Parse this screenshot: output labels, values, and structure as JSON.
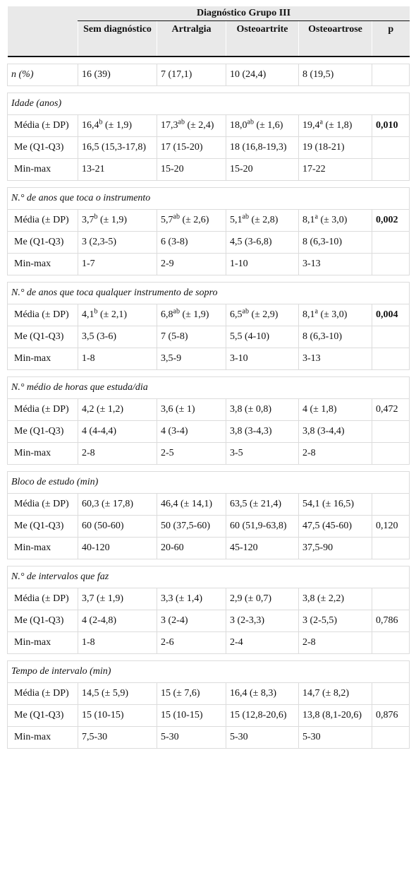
{
  "header": {
    "group_title": "Diagnóstico Grupo III",
    "columns": [
      "Sem diagnóstico",
      "Artralgia",
      "Osteoartrite",
      "Osteoartrose",
      "p"
    ]
  },
  "n_row": {
    "label": "n (%)",
    "values": [
      "16 (39)",
      "7 (17,1)",
      "10 (24,4)",
      "8 (19,5)",
      ""
    ]
  },
  "sections": [
    {
      "title": "Idade (anos)",
      "rows": [
        {
          "label": "Média (± DP)",
          "cells": [
            {
              "main": "16,4",
              "sup": "b",
              "rest": " (± 1,9)"
            },
            {
              "main": "17,3",
              "sup": "ab",
              "rest": " (± 2,4)"
            },
            {
              "main": "18,0",
              "sup": "ab",
              "rest": " (± 1,6)"
            },
            {
              "main": "19,4",
              "sup": "a",
              "rest": " (± 1,8)"
            }
          ],
          "p": "0,010",
          "p_bold": true
        },
        {
          "label": "Me (Q1-Q3)",
          "cells": [
            {
              "main": "16,5 (15,3-17,8)"
            },
            {
              "main": "17 (15-20)"
            },
            {
              "main": "18 (16,8-19,3)"
            },
            {
              "main": "19 (18-21)"
            }
          ],
          "p": ""
        },
        {
          "label": "Min-max",
          "cells": [
            {
              "main": "13-21"
            },
            {
              "main": "15-20"
            },
            {
              "main": "15-20"
            },
            {
              "main": "17-22"
            }
          ],
          "p": ""
        }
      ]
    },
    {
      "title": "N.° de anos que toca o instrumento",
      "rows": [
        {
          "label": "Média (± DP)",
          "cells": [
            {
              "main": "3,7",
              "sup": "b",
              "rest": " (± 1,9)"
            },
            {
              "main": "5,7",
              "sup": "ab",
              "rest": " (± 2,6)"
            },
            {
              "main": "5,1",
              "sup": "ab",
              "rest": " (± 2,8)"
            },
            {
              "main": "8,1",
              "sup": "a",
              "rest": " (± 3,0)"
            }
          ],
          "p": "0,002",
          "p_bold": true
        },
        {
          "label": "Me (Q1-Q3)",
          "cells": [
            {
              "main": "3 (2,3-5)"
            },
            {
              "main": "6 (3-8)"
            },
            {
              "main": "4,5 (3-6,8)"
            },
            {
              "main": "8 (6,3-10)"
            }
          ],
          "p": ""
        },
        {
          "label": "Min-max",
          "cells": [
            {
              "main": "1-7"
            },
            {
              "main": "2-9"
            },
            {
              "main": "1-10"
            },
            {
              "main": "3-13"
            }
          ],
          "p": ""
        }
      ]
    },
    {
      "title": "N.° de anos que toca qualquer instrumento de sopro",
      "rows": [
        {
          "label": "Média (± DP)",
          "cells": [
            {
              "main": "4,1",
              "sup": "b",
              "rest": " (± 2,1)"
            },
            {
              "main": "6,8",
              "sup": "ab",
              "rest": " (± 1,9)"
            },
            {
              "main": "6,5",
              "sup": "ab",
              "rest": " (± 2,9)"
            },
            {
              "main": "8,1",
              "sup": "a",
              "rest": " (± 3,0)"
            }
          ],
          "p": "0,004",
          "p_bold": true
        },
        {
          "label": "Me (Q1-Q3)",
          "cells": [
            {
              "main": "3,5 (3-6)"
            },
            {
              "main": "7 (5-8)"
            },
            {
              "main": "5,5 (4-10)"
            },
            {
              "main": "8 (6,3-10)"
            }
          ],
          "p": ""
        },
        {
          "label": "Min-max",
          "cells": [
            {
              "main": "1-8"
            },
            {
              "main": "3,5-9"
            },
            {
              "main": "3-10"
            },
            {
              "main": "3-13"
            }
          ],
          "p": ""
        }
      ]
    },
    {
      "title": "N.° médio de horas que estuda/dia",
      "rows": [
        {
          "label": "Média (± DP)",
          "cells": [
            {
              "main": "4,2 (± 1,2)"
            },
            {
              "main": "3,6 (± 1)"
            },
            {
              "main": "3,8 (± 0,8)"
            },
            {
              "main": "4 (± 1,8)"
            }
          ],
          "p": "0,472"
        },
        {
          "label": "Me (Q1-Q3)",
          "cells": [
            {
              "main": "4 (4-4,4)"
            },
            {
              "main": "4 (3-4)"
            },
            {
              "main": "3,8 (3-4,3)"
            },
            {
              "main": "3,8 (3-4,4)"
            }
          ],
          "p": ""
        },
        {
          "label": "Min-max",
          "cells": [
            {
              "main": "2-8"
            },
            {
              "main": "2-5"
            },
            {
              "main": "3-5"
            },
            {
              "main": "2-8"
            }
          ],
          "p": ""
        }
      ]
    },
    {
      "title": "Bloco de estudo (min)",
      "rows": [
        {
          "label": "Média (± DP)",
          "cells": [
            {
              "main": "60,3 (± 17,8)"
            },
            {
              "main": "46,4 (± 14,1)"
            },
            {
              "main": "63,5 (± 21,4)"
            },
            {
              "main": "54,1 (± 16,5)"
            }
          ],
          "p": ""
        },
        {
          "label": "Me (Q1-Q3)",
          "cells": [
            {
              "main": "60 (50-60)"
            },
            {
              "main": "50 (37,5-60)"
            },
            {
              "main": "60 (51,9-63,8)"
            },
            {
              "main": "47,5 (45-60)"
            }
          ],
          "p": "0,120"
        },
        {
          "label": "Min-max",
          "cells": [
            {
              "main": "40-120"
            },
            {
              "main": "20-60"
            },
            {
              "main": "45-120"
            },
            {
              "main": "37,5-90"
            }
          ],
          "p": ""
        }
      ]
    },
    {
      "title": "N.° de intervalos que faz",
      "rows": [
        {
          "label": "Média (± DP)",
          "cells": [
            {
              "main": "3,7 (± 1,9)"
            },
            {
              "main": "3,3 (± 1,4)"
            },
            {
              "main": "2,9 (± 0,7)"
            },
            {
              "main": "3,8 (± 2,2)"
            }
          ],
          "p": ""
        },
        {
          "label": "Me (Q1-Q3)",
          "cells": [
            {
              "main": "4 (2-4,8)"
            },
            {
              "main": "3 (2-4)"
            },
            {
              "main": "3 (2-3,3)"
            },
            {
              "main": "3 (2-5,5)"
            }
          ],
          "p": "0,786"
        },
        {
          "label": "Min-max",
          "cells": [
            {
              "main": "1-8"
            },
            {
              "main": "2-6"
            },
            {
              "main": "2-4"
            },
            {
              "main": "2-8"
            }
          ],
          "p": ""
        }
      ]
    },
    {
      "title": "Tempo de intervalo (min)",
      "rows": [
        {
          "label": "Média (± DP)",
          "cells": [
            {
              "main": "14,5 (± 5,9)"
            },
            {
              "main": "15 (± 7,6)"
            },
            {
              "main": "16,4 (± 8,3)"
            },
            {
              "main": "14,7 (± 8,2)"
            }
          ],
          "p": ""
        },
        {
          "label": "Me (Q1-Q3)",
          "cells": [
            {
              "main": "15 (10-15)"
            },
            {
              "main": "15 (10-15)"
            },
            {
              "main": "15 (12,8-20,6)"
            },
            {
              "main": "13,8 (8,1-20,6)"
            }
          ],
          "p": "0,876"
        },
        {
          "label": "Min-max",
          "cells": [
            {
              "main": "7,5-30"
            },
            {
              "main": "5-30"
            },
            {
              "main": "5-30"
            },
            {
              "main": "5-30"
            }
          ],
          "p": ""
        }
      ]
    }
  ]
}
